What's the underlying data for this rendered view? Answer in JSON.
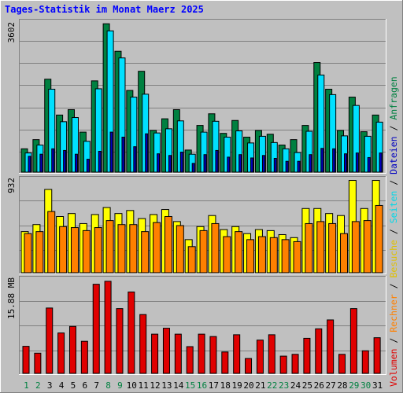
{
  "title": "Tages-Statistik im Monat Maerz 2025",
  "colors": {
    "background": "#c0c0c0",
    "title": "#0000ff",
    "grid": "#808080",
    "anfragen": "#008040",
    "dateien": "#00e0ff",
    "seiten": "#0000c0",
    "besuche": "#ffff00",
    "rechner": "#ff8000",
    "volumen": "#e00000",
    "weekend_label": "#008040",
    "weekday_label": "#000000"
  },
  "chart_data": [
    {
      "type": "bar",
      "panel": "top",
      "ymax_label": "3602",
      "ylim": [
        0,
        3602
      ],
      "categories": [
        "1",
        "2",
        "3",
        "4",
        "5",
        "6",
        "7",
        "8",
        "9",
        "10",
        "11",
        "12",
        "13",
        "14",
        "15",
        "16",
        "17",
        "18",
        "19",
        "20",
        "21",
        "22",
        "23",
        "24",
        "25",
        "26",
        "27",
        "28",
        "29",
        "30",
        "31"
      ],
      "series": [
        {
          "name": "Anfragen",
          "values": [
            560,
            780,
            2230,
            1370,
            1500,
            960,
            2190,
            3560,
            2900,
            1960,
            2420,
            1000,
            1280,
            1500,
            530,
            1120,
            1400,
            930,
            1240,
            840,
            1000,
            910,
            650,
            780,
            1120,
            2630,
            1990,
            1000,
            1800,
            970,
            1370
          ]
        },
        {
          "name": "Dateien",
          "values": [
            460,
            650,
            1990,
            1210,
            1310,
            740,
            2000,
            3390,
            2740,
            1800,
            1870,
            940,
            1040,
            1230,
            430,
            960,
            1220,
            840,
            990,
            700,
            860,
            710,
            560,
            470,
            980,
            2330,
            1860,
            870,
            1600,
            860,
            1200
          ]
        },
        {
          "name": "Seiten",
          "values": [
            380,
            430,
            560,
            520,
            430,
            310,
            500,
            960,
            840,
            610,
            920,
            440,
            400,
            480,
            210,
            420,
            520,
            360,
            420,
            340,
            400,
            330,
            260,
            260,
            420,
            570,
            560,
            440,
            460,
            350,
            460
          ]
        }
      ]
    },
    {
      "type": "bar",
      "panel": "middle",
      "ymax_label": "932",
      "ylim": [
        0,
        932
      ],
      "categories": [
        "1",
        "2",
        "3",
        "4",
        "5",
        "6",
        "7",
        "8",
        "9",
        "10",
        "11",
        "12",
        "13",
        "14",
        "15",
        "16",
        "17",
        "18",
        "19",
        "20",
        "21",
        "22",
        "23",
        "24",
        "25",
        "26",
        "27",
        "28",
        "29",
        "30",
        "31"
      ],
      "series": [
        {
          "name": "Besuche",
          "values": [
            410,
            480,
            830,
            560,
            590,
            490,
            580,
            650,
            590,
            620,
            540,
            580,
            630,
            510,
            330,
            460,
            570,
            430,
            460,
            390,
            430,
            420,
            380,
            350,
            640,
            640,
            590,
            570,
            920,
            640,
            920
          ]
        },
        {
          "name": "Rechner",
          "values": [
            390,
            410,
            610,
            460,
            450,
            420,
            450,
            520,
            480,
            480,
            410,
            500,
            560,
            470,
            260,
            420,
            490,
            360,
            410,
            330,
            360,
            350,
            330,
            310,
            490,
            510,
            490,
            390,
            510,
            520,
            670
          ]
        }
      ]
    },
    {
      "type": "bar",
      "panel": "bottom",
      "ymax_label": "15.88 MB",
      "ylim": [
        0,
        15.88
      ],
      "categories": [
        "1",
        "2",
        "3",
        "4",
        "5",
        "6",
        "7",
        "8",
        "9",
        "10",
        "11",
        "12",
        "13",
        "14",
        "15",
        "16",
        "17",
        "18",
        "19",
        "20",
        "21",
        "22",
        "23",
        "24",
        "25",
        "26",
        "27",
        "28",
        "29",
        "30",
        "31"
      ],
      "series": [
        {
          "name": "Volumen",
          "values": [
            4.55,
            3.4,
            11.0,
            6.8,
            7.9,
            5.4,
            15.0,
            15.5,
            10.9,
            13.7,
            9.9,
            6.6,
            7.6,
            6.6,
            4.5,
            6.6,
            6.2,
            3.6,
            6.5,
            2.5,
            5.6,
            6.5,
            2.9,
            3.2,
            5.9,
            7.5,
            9.0,
            3.2,
            10.9,
            3.8,
            6.0
          ]
        }
      ]
    }
  ],
  "legend_words": {
    "volumen": "Volumen",
    "rechner": "Rechner",
    "besuche": "Besuche",
    "seiten": "Seiten",
    "dateien": "Dateien",
    "anfragen": "Anfragen",
    "separator": " / "
  },
  "weekend_days": [
    "1",
    "2",
    "8",
    "9",
    "15",
    "16",
    "22",
    "23",
    "29",
    "30"
  ]
}
